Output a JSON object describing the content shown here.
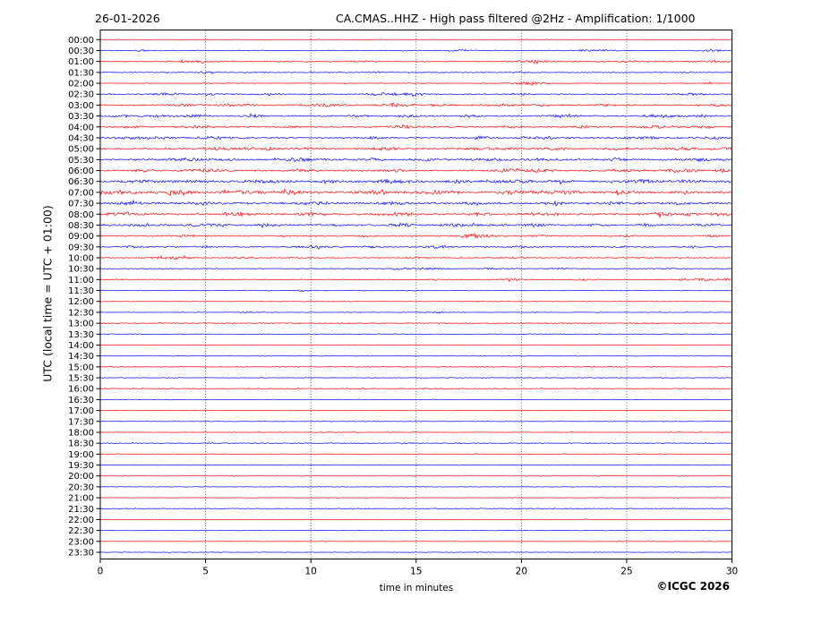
{
  "header": {
    "date": "26-01-2026",
    "title": "CA.CMAS..HHZ - High pass filtered @2Hz - Amplification: 1/1000"
  },
  "axes": {
    "y_label": "UTC (local time = UTC + 01:00)",
    "x_label": "time in minutes"
  },
  "footer": {
    "copyright": "©ICGC 2026"
  },
  "chart_data": {
    "type": "line",
    "subtype": "helicorder-dayplot",
    "title": "CA.CMAS..HHZ - High pass filtered @2Hz - Amplification: 1/1000",
    "date": "26-01-2026",
    "xlabel": "time in minutes",
    "ylabel": "UTC (local time = UTC + 01:00)",
    "x_range": [
      0,
      30
    ],
    "x_ticks": [
      0,
      5,
      10,
      15,
      20,
      25,
      30
    ],
    "minutes_per_row": 30,
    "grid": "vertical dotted lines at each 5-minute mark",
    "legend": "none",
    "colors": {
      "r": "#ff0000",
      "b": "#0000ff"
    },
    "events_format": "[center_minute, halfwidth_minutes, amplitude_px] noise bursts read from the trace",
    "rows": [
      {
        "t": "00:00",
        "c": "r",
        "base": 0.3,
        "ev": []
      },
      {
        "t": "00:30",
        "c": "b",
        "base": 0.45,
        "ev": [
          [
            2,
            0.4,
            0.9
          ],
          [
            17.2,
            0.5,
            1.0
          ],
          [
            23.5,
            0.8,
            1.1
          ],
          [
            29,
            0.6,
            1.4
          ]
        ]
      },
      {
        "t": "01:00",
        "c": "r",
        "base": 0.65,
        "ev": [
          [
            4.5,
            0.9,
            1.1
          ],
          [
            12,
            0.5,
            0.7
          ],
          [
            20.5,
            0.8,
            1.4
          ],
          [
            25,
            0.5,
            0.7
          ],
          [
            29.2,
            0.5,
            0.9
          ]
        ]
      },
      {
        "t": "01:30",
        "c": "b",
        "base": 0.5,
        "ev": [
          [
            5,
            0.5,
            0.9
          ],
          [
            7.5,
            0.4,
            0.7
          ],
          [
            13,
            0.4,
            0.7
          ],
          [
            20,
            0.5,
            0.9
          ],
          [
            28,
            0.4,
            0.7
          ]
        ]
      },
      {
        "t": "02:00",
        "c": "r",
        "base": 0.4,
        "ev": [
          [
            20.4,
            0.7,
            2.2
          ],
          [
            29,
            0.4,
            0.7
          ]
        ]
      },
      {
        "t": "02:30",
        "c": "b",
        "base": 0.55,
        "ev": [
          [
            3.2,
            0.8,
            1.2
          ],
          [
            5.3,
            0.5,
            1.2
          ],
          [
            8,
            0.4,
            1.0
          ],
          [
            13.6,
            0.9,
            1.7
          ],
          [
            15,
            0.5,
            1.4
          ],
          [
            20,
            0.5,
            1.1
          ],
          [
            28,
            0.8,
            1.1
          ]
        ]
      },
      {
        "t": "03:00",
        "c": "r",
        "base": 0.75,
        "ev": [
          [
            4,
            0.5,
            1.2
          ],
          [
            6.6,
            0.8,
            1.4
          ],
          [
            10.6,
            0.8,
            1.4
          ],
          [
            14,
            0.8,
            1.7
          ],
          [
            16.2,
            0.5,
            1.1
          ],
          [
            19,
            0.8,
            1.2
          ],
          [
            21.2,
            0.5,
            1.1
          ],
          [
            24,
            0.5,
            0.9
          ],
          [
            29.5,
            0.5,
            1.4
          ]
        ]
      },
      {
        "t": "03:30",
        "c": "b",
        "base": 0.75,
        "ev": [
          [
            1,
            0.5,
            1.1
          ],
          [
            3,
            0.9,
            1.4
          ],
          [
            4.6,
            0.5,
            1.7
          ],
          [
            7.3,
            0.5,
            1.2
          ],
          [
            12,
            0.8,
            1.1
          ],
          [
            14.6,
            0.5,
            1.1
          ],
          [
            17.5,
            0.5,
            1.2
          ],
          [
            22,
            0.8,
            1.3
          ],
          [
            26.6,
            0.9,
            1.5
          ],
          [
            28.6,
            0.5,
            1.1
          ]
        ]
      },
      {
        "t": "04:00",
        "c": "r",
        "base": 0.75,
        "ev": [
          [
            1.5,
            0.5,
            1.1
          ],
          [
            4.6,
            0.8,
            1.2
          ],
          [
            9,
            0.5,
            0.9
          ],
          [
            14.6,
            0.9,
            1.4
          ],
          [
            19.6,
            0.5,
            0.9
          ],
          [
            23,
            0.8,
            1.1
          ],
          [
            26.6,
            0.9,
            1.7
          ],
          [
            28.6,
            0.5,
            1.2
          ]
        ]
      },
      {
        "t": "04:30",
        "c": "b",
        "base": 0.85,
        "ev": [
          [
            1.6,
            0.9,
            1.5
          ],
          [
            3,
            0.5,
            1.2
          ],
          [
            5.6,
            0.8,
            1.2
          ],
          [
            13,
            0.5,
            1.1
          ],
          [
            18,
            0.5,
            1.1
          ],
          [
            21,
            0.8,
            1.3
          ],
          [
            26,
            0.8,
            1.2
          ],
          [
            29,
            0.5,
            1.2
          ]
        ]
      },
      {
        "t": "05:00",
        "c": "r",
        "base": 0.85,
        "ev": [
          [
            5.6,
            0.8,
            1.3
          ],
          [
            7.6,
            0.8,
            1.4
          ],
          [
            10,
            0.5,
            1.1
          ],
          [
            13.6,
            0.8,
            1.3
          ],
          [
            17.6,
            0.5,
            1.2
          ],
          [
            19,
            0.9,
            1.5
          ],
          [
            21.6,
            0.8,
            1.4
          ],
          [
            24.6,
            0.5,
            1.2
          ],
          [
            27.6,
            0.8,
            1.4
          ],
          [
            29.6,
            0.4,
            1.3
          ]
        ]
      },
      {
        "t": "05:30",
        "c": "b",
        "base": 0.95,
        "ev": [
          [
            4,
            0.8,
            1.4
          ],
          [
            6,
            0.5,
            1.3
          ],
          [
            9.6,
            0.9,
            1.7
          ],
          [
            13,
            0.5,
            1.2
          ],
          [
            15.6,
            0.5,
            1.3
          ],
          [
            18.6,
            0.8,
            1.3
          ],
          [
            21,
            0.8,
            1.4
          ],
          [
            24.6,
            0.5,
            1.6
          ],
          [
            28.6,
            0.8,
            1.4
          ]
        ]
      },
      {
        "t": "06:00",
        "c": "r",
        "base": 0.95,
        "ev": [
          [
            2,
            0.5,
            1.2
          ],
          [
            5,
            0.8,
            1.3
          ],
          [
            9.6,
            0.8,
            1.4
          ],
          [
            14,
            0.5,
            1.2
          ],
          [
            19.8,
            0.9,
            1.7
          ],
          [
            21,
            0.5,
            1.5
          ],
          [
            25,
            0.8,
            1.4
          ],
          [
            27.6,
            0.8,
            1.7
          ],
          [
            29.6,
            0.5,
            1.4
          ]
        ]
      },
      {
        "t": "06:30",
        "c": "b",
        "base": 1.1,
        "ev": [
          [
            2,
            0.8,
            1.4
          ],
          [
            4.6,
            0.8,
            1.5
          ],
          [
            8,
            0.8,
            1.4
          ],
          [
            10.6,
            0.5,
            1.3
          ],
          [
            14,
            0.9,
            1.6
          ],
          [
            17,
            0.5,
            1.3
          ],
          [
            19.6,
            0.8,
            1.4
          ],
          [
            22,
            0.5,
            1.4
          ],
          [
            25.6,
            0.8,
            1.5
          ],
          [
            28,
            0.5,
            1.4
          ]
        ]
      },
      {
        "t": "07:00",
        "c": "r",
        "base": 1.2,
        "ev": [
          [
            1,
            0.9,
            1.7
          ],
          [
            3.6,
            0.9,
            1.8
          ],
          [
            6.6,
            0.9,
            1.7
          ],
          [
            9,
            0.8,
            1.6
          ],
          [
            13,
            0.9,
            1.5
          ],
          [
            16,
            0.8,
            1.5
          ],
          [
            19.6,
            0.8,
            1.6
          ],
          [
            22,
            0.8,
            1.5
          ],
          [
            25,
            0.8,
            1.5
          ],
          [
            27.6,
            0.5,
            1.4
          ]
        ]
      },
      {
        "t": "07:30",
        "c": "b",
        "base": 1.05,
        "ev": [
          [
            1.6,
            0.9,
            1.3
          ],
          [
            5,
            0.8,
            1.2
          ],
          [
            10,
            0.8,
            1.2
          ],
          [
            14,
            0.8,
            1.3
          ],
          [
            18,
            0.8,
            1.3
          ],
          [
            21.6,
            0.5,
            1.2
          ],
          [
            24.6,
            0.8,
            1.3
          ],
          [
            27.6,
            0.5,
            1.2
          ]
        ]
      },
      {
        "t": "08:00",
        "c": "r",
        "base": 1.05,
        "ev": [
          [
            1,
            0.9,
            1.6
          ],
          [
            6.6,
            0.8,
            1.5
          ],
          [
            10,
            0.8,
            1.3
          ],
          [
            14,
            0.8,
            1.3
          ],
          [
            18,
            0.5,
            1.2
          ],
          [
            21,
            0.8,
            1.4
          ],
          [
            26.7,
            0.35,
            3.4
          ],
          [
            28,
            0.5,
            1.4
          ],
          [
            29.6,
            0.5,
            1.7
          ]
        ]
      },
      {
        "t": "08:30",
        "c": "b",
        "base": 0.95,
        "ev": [
          [
            2,
            0.8,
            1.2
          ],
          [
            5,
            0.8,
            1.2
          ],
          [
            8,
            0.5,
            1.1
          ],
          [
            10.6,
            0.5,
            1.1
          ],
          [
            14.3,
            0.5,
            1.8
          ],
          [
            17,
            0.8,
            1.2
          ],
          [
            20.6,
            0.5,
            1.2
          ],
          [
            23.6,
            0.5,
            1.1
          ],
          [
            26,
            0.5,
            1.2
          ],
          [
            29,
            0.5,
            1.2
          ]
        ]
      },
      {
        "t": "09:00",
        "c": "r",
        "base": 0.65,
        "ev": [
          [
            4,
            0.5,
            1.1
          ],
          [
            9,
            0.5,
            0.9
          ],
          [
            12.6,
            0.5,
            0.9
          ],
          [
            17.8,
            0.8,
            2.2
          ],
          [
            21,
            0.5,
            0.9
          ],
          [
            25,
            0.5,
            0.8
          ],
          [
            29,
            0.5,
            1.0
          ]
        ]
      },
      {
        "t": "09:30",
        "c": "b",
        "base": 0.65,
        "ev": [
          [
            1.6,
            0.5,
            1.0
          ],
          [
            4.8,
            0.5,
            1.1
          ],
          [
            10,
            0.8,
            1.2
          ],
          [
            13,
            0.5,
            1.1
          ],
          [
            16,
            0.8,
            1.3
          ],
          [
            20,
            0.5,
            1.1
          ],
          [
            24.6,
            0.5,
            0.9
          ],
          [
            28,
            0.5,
            0.9
          ]
        ]
      },
      {
        "t": "10:00",
        "c": "r",
        "base": 0.55,
        "ev": [
          [
            3.4,
            0.8,
            1.8
          ],
          [
            6.6,
            0.5,
            0.9
          ],
          [
            10,
            0.5,
            0.7
          ],
          [
            15,
            0.5,
            0.7
          ],
          [
            20,
            0.5,
            0.7
          ],
          [
            26,
            0.5,
            0.7
          ]
        ]
      },
      {
        "t": "10:30",
        "c": "b",
        "base": 0.45,
        "ev": [
          [
            14.3,
            0.5,
            1.4
          ],
          [
            15.6,
            0.8,
            1.1
          ],
          [
            18.6,
            0.5,
            0.9
          ],
          [
            21.6,
            0.5,
            0.7
          ],
          [
            27,
            0.5,
            0.7
          ]
        ]
      },
      {
        "t": "11:00",
        "c": "r",
        "base": 0.45,
        "ev": [
          [
            1,
            0.3,
            0.7
          ],
          [
            16,
            0.5,
            0.9
          ],
          [
            19.6,
            0.5,
            1.1
          ],
          [
            23,
            0.5,
            1.1
          ],
          [
            27.6,
            0.4,
            0.9
          ],
          [
            28.9,
            0.5,
            2.0
          ],
          [
            29.8,
            0.2,
            1.1
          ]
        ]
      },
      {
        "t": "11:30",
        "c": "b",
        "base": 0.4,
        "ev": [
          [
            9.6,
            0.3,
            0.8
          ]
        ]
      },
      {
        "t": "12:00",
        "c": "r",
        "base": 0.35,
        "ev": [
          [
            18,
            0.5,
            0.4
          ]
        ]
      },
      {
        "t": "12:30",
        "c": "b",
        "base": 0.35,
        "ev": [
          [
            7,
            0.25,
            0.8
          ],
          [
            16.1,
            0.25,
            0.8
          ]
        ]
      },
      {
        "t": "13:00",
        "c": "r",
        "base": 0.55,
        "ev": []
      },
      {
        "t": "13:30",
        "c": "b",
        "base": 0.45,
        "ev": []
      },
      {
        "t": "14:00",
        "c": "r",
        "base": 0.3,
        "ev": []
      },
      {
        "t": "14:30",
        "c": "b",
        "base": 0.3,
        "ev": []
      },
      {
        "t": "15:00",
        "c": "r",
        "base": 0.45,
        "ev": []
      },
      {
        "t": "15:30",
        "c": "b",
        "base": 0.4,
        "ev": []
      },
      {
        "t": "16:00",
        "c": "r",
        "base": 0.5,
        "ev": []
      },
      {
        "t": "16:30",
        "c": "b",
        "base": 0.35,
        "ev": []
      },
      {
        "t": "17:00",
        "c": "r",
        "base": 0.3,
        "ev": []
      },
      {
        "t": "17:30",
        "c": "b",
        "base": 0.3,
        "ev": []
      },
      {
        "t": "18:00",
        "c": "r",
        "base": 0.35,
        "ev": []
      },
      {
        "t": "18:30",
        "c": "b",
        "base": 0.55,
        "ev": []
      },
      {
        "t": "19:00",
        "c": "r",
        "base": 0.45,
        "ev": []
      },
      {
        "t": "19:30",
        "c": "b",
        "base": 0.3,
        "ev": []
      },
      {
        "t": "20:00",
        "c": "r",
        "base": 0.3,
        "ev": []
      },
      {
        "t": "20:30",
        "c": "b",
        "base": 0.3,
        "ev": []
      },
      {
        "t": "21:00",
        "c": "r",
        "base": 0.3,
        "ev": []
      },
      {
        "t": "21:30",
        "c": "b",
        "base": 0.5,
        "ev": []
      },
      {
        "t": "22:00",
        "c": "r",
        "base": 0.3,
        "ev": [
          [
            23,
            0.2,
            0.8
          ]
        ]
      },
      {
        "t": "22:30",
        "c": "b",
        "base": 0.3,
        "ev": []
      },
      {
        "t": "23:00",
        "c": "r",
        "base": 0.3,
        "ev": []
      },
      {
        "t": "23:30",
        "c": "b",
        "base": 0.35,
        "ev": []
      }
    ]
  }
}
